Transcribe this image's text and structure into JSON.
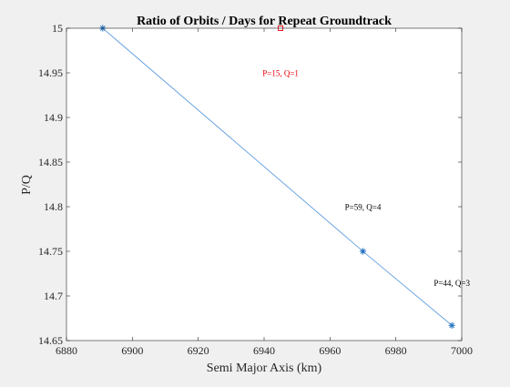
{
  "figure": {
    "background": "#f0f0f0"
  },
  "chart_data": {
    "type": "line",
    "title": "Ratio of Orbits / Days for Repeat Groundtrack",
    "xlabel": "Semi Major Axis (km)",
    "ylabel": "P/Q",
    "xlim": [
      6880,
      7000
    ],
    "ylim": [
      14.65,
      15
    ],
    "xticks": [
      6880,
      6900,
      6920,
      6940,
      6960,
      6980,
      7000
    ],
    "yticks": [
      14.65,
      14.7,
      14.75,
      14.8,
      14.85,
      14.9,
      14.95,
      15
    ],
    "xtick_labels": [
      "6880",
      "6900",
      "6920",
      "6940",
      "6960",
      "6980",
      "7000"
    ],
    "ytick_labels": [
      "14.65",
      "14.7",
      "14.75",
      "14.8",
      "14.85",
      "14.9",
      "14.95",
      "15"
    ],
    "grid": false,
    "series": [
      {
        "line_color": "#4a90d9",
        "marker": "asterisk",
        "marker_color": "#1f6fbf",
        "x": [
          6891,
          6970,
          6997
        ],
        "y": [
          15,
          14.75,
          14.667
        ]
      },
      {
        "line_color": "none",
        "marker": "square",
        "marker_color": "#e8000b",
        "x": [
          6945
        ],
        "y": [
          15
        ]
      }
    ],
    "annotations": [
      {
        "text": "P=15, Q=1",
        "x": 6945,
        "y": 14.95,
        "color": "#e8000b"
      },
      {
        "text": "P=59, Q=4",
        "x": 6970,
        "y": 14.8,
        "color": "#000000"
      },
      {
        "text": "P=44, Q=3",
        "x": 6997,
        "y": 14.715,
        "color": "#000000"
      }
    ]
  }
}
